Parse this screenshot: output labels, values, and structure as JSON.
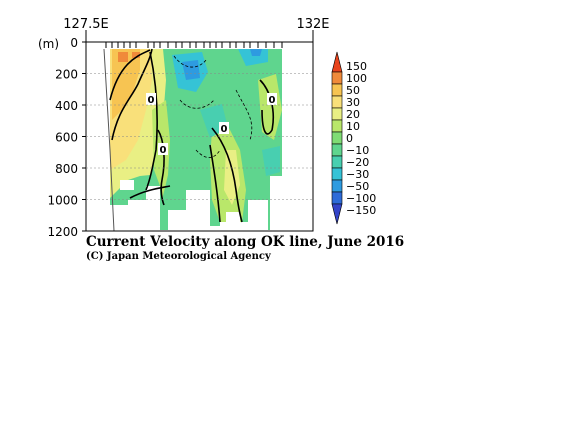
{
  "chart_data": {
    "type": "heatmap",
    "title": "Current Velocity along OK line, June 2016",
    "credit": "(C) Japan Meteorological Agency",
    "x_axis": {
      "ticklabels": [
        "127.5E",
        "132E"
      ],
      "range": [
        127.5,
        132
      ]
    },
    "y_axis": {
      "unit_label": "(m)",
      "ticklabels": [
        "0",
        "200",
        "400",
        "600",
        "800",
        "1000",
        "1200"
      ],
      "range": [
        0,
        1200
      ],
      "inverted": true
    },
    "colorbar": {
      "levels": [
        "150",
        "100",
        "50",
        "30",
        "20",
        "10",
        "0",
        "−10",
        "−20",
        "−30",
        "−50",
        "−100",
        "−150"
      ],
      "colors": [
        "#e8431c",
        "#f08a3a",
        "#f7c452",
        "#f9e07a",
        "#e9ef84",
        "#b9e76a",
        "#7fdc74",
        "#5fd58e",
        "#48cfb0",
        "#35c3d6",
        "#2e9be0",
        "#2d6bd8",
        "#3344c8"
      ]
    },
    "contour_labels": [
      "0",
      "0",
      "0",
      "0"
    ],
    "grid": true
  }
}
